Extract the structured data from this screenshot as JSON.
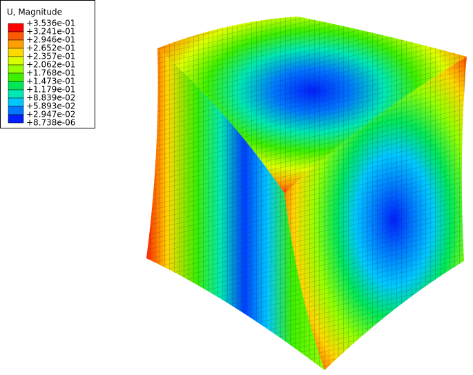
{
  "legend": {
    "title": "U, Magnitude",
    "labels": [
      "+3.536e-01",
      "+3.241e-01",
      "+2.946e-01",
      "+2.652e-01",
      "+2.357e-01",
      "+2.062e-01",
      "+1.768e-01",
      "+1.473e-01",
      "+1.179e-01",
      "+8.839e-02",
      "+5.893e-02",
      "+2.947e-02",
      "+8.738e-06"
    ],
    "colors": [
      "#ff0000",
      "#ff5a00",
      "#ff9f00",
      "#ffd800",
      "#dcff00",
      "#96ff00",
      "#3cf000",
      "#00e85a",
      "#00e8b4",
      "#00c8ff",
      "#0078ff",
      "#0020ff"
    ]
  }
}
